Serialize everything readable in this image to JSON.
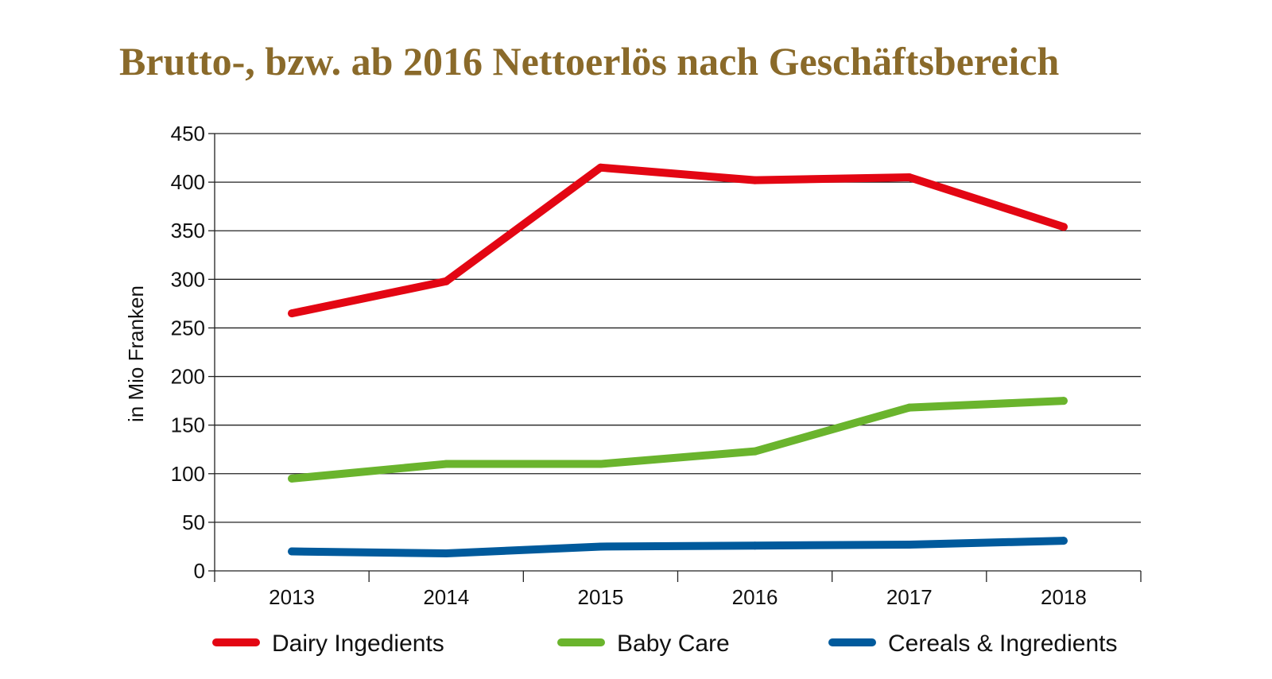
{
  "chart_data": {
    "type": "line",
    "title": "Brutto-, bzw. ab 2016 Nettoerlös nach Geschäftsbereich",
    "ylabel": "in Mio Franken",
    "xlabel": "",
    "ylim": [
      0,
      450
    ],
    "yticks": [
      "0",
      "50",
      "100",
      "150",
      "200",
      "250",
      "300",
      "350",
      "400",
      "450"
    ],
    "categories": [
      "2013",
      "2014",
      "2015",
      "2016",
      "2017",
      "2018"
    ],
    "grid": true,
    "legend": "bottom",
    "series": [
      {
        "name": "Dairy Ingedients",
        "color": "#e30613",
        "values": [
          265,
          298,
          415,
          402,
          405,
          354
        ]
      },
      {
        "name": "Baby Care",
        "color": "#6ab42d",
        "values": [
          95,
          110,
          110,
          123,
          168,
          175
        ]
      },
      {
        "name": "Cereals & Ingredients",
        "color": "#005a9c",
        "values": [
          20,
          18,
          25,
          26,
          27,
          31
        ]
      }
    ]
  }
}
